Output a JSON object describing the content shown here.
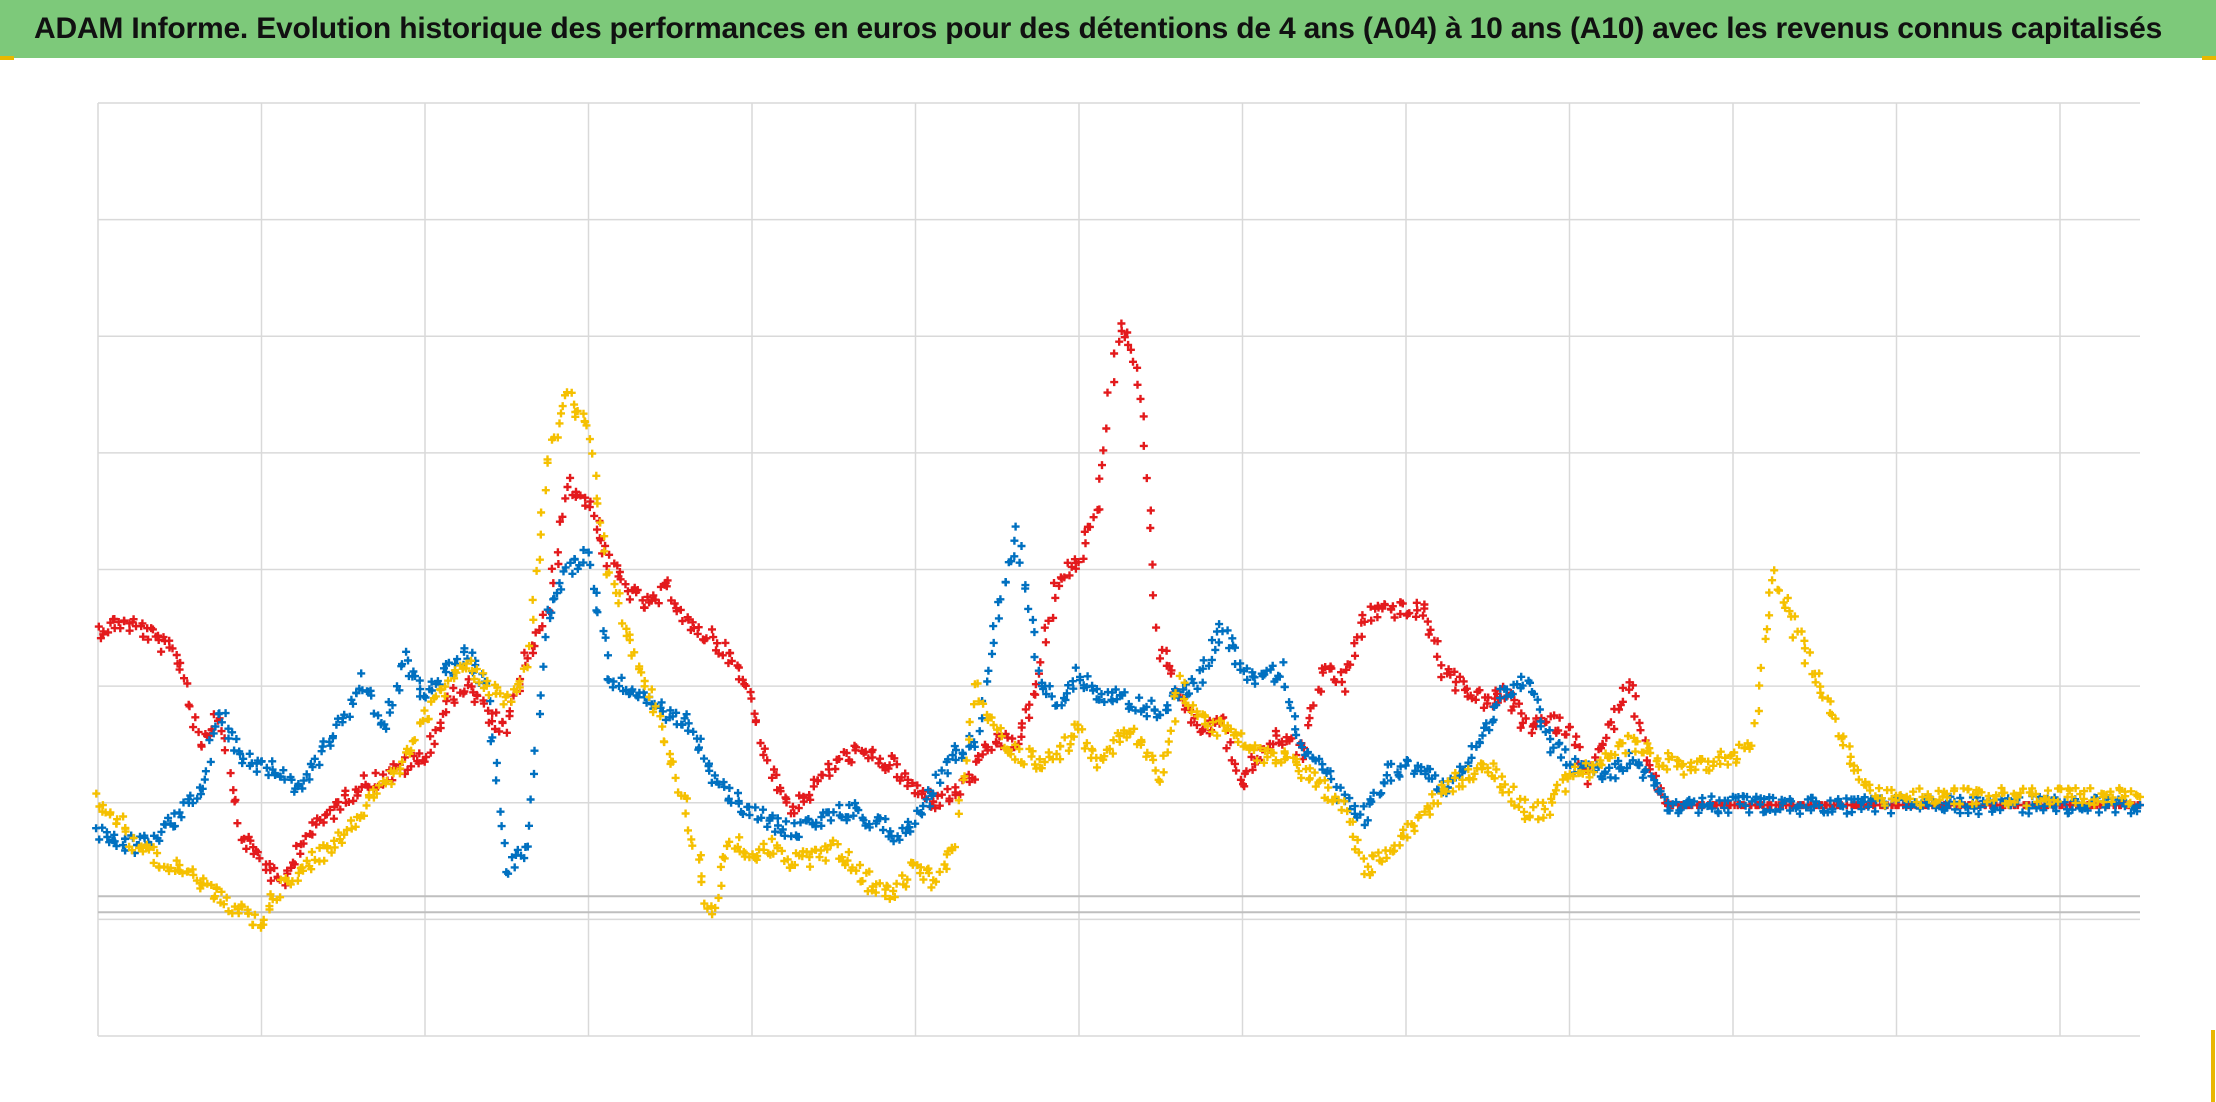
{
  "header": {
    "title": "ADAM Informe. Evolution historique des performances en euros pour des détentions de 4 ans (A04) à 10 ans (A10) avec les revenus connus capitalisés"
  },
  "colors": {
    "title_background": "#7dc97a",
    "grid": "#d9d9d9",
    "axis": "#bfbfbf",
    "frame_accent": "#e8b800"
  },
  "chart_data": {
    "type": "scatter",
    "marker": "plus",
    "title": "ADAM Informe. Evolution historique des performances en euros pour des détentions de 4 ans (A04) à 10 ans (A10) avec les revenus connus capitalisés",
    "xlabel": "",
    "ylabel": "",
    "axis_labels_visible": false,
    "grid": true,
    "legend": "none",
    "x_gridline_count": 13,
    "y_gridline_count": 8,
    "xlim": [
      0,
      1000
    ],
    "ylim": [
      -113,
      687
    ],
    "series": [
      {
        "color": "#e31a1c",
        "x": [
          0,
          10,
          20,
          30,
          40,
          50,
          60,
          70,
          80,
          90,
          100,
          110,
          120,
          130,
          140,
          150,
          160,
          170,
          180,
          190,
          200,
          210,
          220,
          230,
          240,
          250,
          260,
          270,
          280,
          290,
          300,
          310,
          320,
          330,
          340,
          350,
          360,
          370,
          380,
          390,
          400,
          410,
          420,
          430,
          440,
          450,
          460,
          470,
          480,
          490,
          500,
          510,
          520,
          530,
          540,
          550,
          560,
          570,
          580,
          590,
          600,
          610,
          620,
          630,
          640,
          650,
          660,
          670,
          680,
          690,
          700,
          710,
          720,
          730,
          740,
          750,
          760,
          770,
          780,
          790,
          800,
          810,
          820,
          830,
          840,
          850,
          860,
          870,
          880,
          890,
          900,
          910,
          920,
          930,
          940,
          950,
          960,
          970,
          980,
          990,
          1000
        ],
        "y": [
          235,
          242,
          238,
          225,
          210,
          138,
          165,
          58,
          40,
          15,
          55,
          72,
          90,
          104,
          108,
          118,
          125,
          168,
          190,
          165,
          148,
          210,
          245,
          360,
          345,
          295,
          268,
          255,
          272,
          235,
          230,
          210,
          176,
          108,
          82,
          100,
          120,
          130,
          125,
          118,
          98,
          88,
          95,
          115,
          142,
          136,
          190,
          280,
          292,
          340,
          505,
          440,
          220,
          180,
          148,
          160,
          102,
          132,
          145,
          130,
          206,
          188,
          247,
          254,
          252,
          250,
          195,
          185,
          172,
          180,
          152,
          156,
          151,
          110,
          148,
          190,
          108,
          85,
          85,
          85,
          85,
          85,
          85,
          85,
          85,
          85,
          85,
          85,
          85,
          85,
          85,
          85,
          85,
          85,
          85,
          85,
          85,
          85,
          85,
          85,
          85
        ]
      },
      {
        "color": "#0070c0",
        "x": [
          0,
          10,
          20,
          30,
          40,
          50,
          60,
          70,
          80,
          90,
          100,
          110,
          120,
          130,
          140,
          150,
          160,
          170,
          180,
          190,
          200,
          210,
          220,
          230,
          240,
          250,
          260,
          270,
          280,
          290,
          300,
          310,
          320,
          330,
          340,
          350,
          360,
          370,
          380,
          390,
          400,
          410,
          420,
          430,
          440,
          450,
          460,
          470,
          480,
          490,
          500,
          510,
          520,
          530,
          540,
          550,
          560,
          570,
          580,
          590,
          600,
          610,
          620,
          630,
          640,
          650,
          660,
          670,
          680,
          690,
          700,
          710,
          720,
          730,
          740,
          750,
          760,
          770,
          780,
          790,
          800,
          810,
          820,
          830,
          840,
          850,
          860,
          870,
          880,
          890,
          900,
          910,
          920,
          930,
          940,
          950,
          960,
          970,
          980,
          990,
          1000
        ],
        "y": [
          62,
          55,
          50,
          60,
          75,
          98,
          168,
          125,
          120,
          110,
          95,
          135,
          160,
          192,
          150,
          210,
          178,
          198,
          215,
          185,
          30,
          50,
          245,
          285,
          300,
          200,
          180,
          172,
          160,
          155,
          110,
          92,
          78,
          70,
          62,
          70,
          78,
          80,
          72,
          60,
          70,
          102,
          130,
          140,
          245,
          320,
          200,
          175,
          198,
          182,
          178,
          170,
          165,
          182,
          195,
          240,
          200,
          195,
          200,
          135,
          115,
          90,
          75,
          110,
          120,
          112,
          100,
          120,
          150,
          185,
          190,
          142,
          122,
          115,
          110,
          125,
          110,
          85,
          85,
          85,
          85,
          85,
          85,
          85,
          85,
          85,
          85,
          85,
          85,
          85,
          85,
          85,
          85,
          85,
          85,
          85,
          85,
          85,
          85,
          85,
          85
        ]
      },
      {
        "color": "#f5c000",
        "x": [
          0,
          10,
          20,
          30,
          40,
          50,
          60,
          70,
          80,
          90,
          100,
          110,
          120,
          130,
          140,
          150,
          160,
          170,
          180,
          190,
          200,
          210,
          220,
          230,
          240,
          250,
          260,
          270,
          280,
          290,
          300,
          310,
          320,
          330,
          340,
          350,
          360,
          370,
          380,
          390,
          400,
          410,
          420,
          430,
          440,
          450,
          460,
          470,
          480,
          490,
          500,
          510,
          520,
          530,
          540,
          550,
          560,
          570,
          580,
          590,
          600,
          610,
          620,
          630,
          640,
          650,
          660,
          670,
          680,
          690,
          700,
          710,
          720,
          730,
          740,
          750,
          760,
          770,
          780,
          790,
          800,
          810,
          820,
          830,
          840,
          850,
          860,
          870,
          880,
          890,
          900,
          910,
          920,
          930,
          940,
          950,
          960,
          970,
          980,
          990,
          1000
        ],
        "y": [
          90,
          72,
          45,
          40,
          30,
          18,
          5,
          -5,
          -15,
          15,
          30,
          45,
          60,
          82,
          102,
          125,
          160,
          185,
          205,
          190,
          175,
          198,
          380,
          435,
          405,
          290,
          225,
          178,
          130,
          70,
          -10,
          55,
          40,
          50,
          35,
          40,
          48,
          32,
          15,
          10,
          32,
          20,
          55,
          190,
          145,
          130,
          122,
          128,
          152,
          118,
          145,
          142,
          105,
          190,
          158,
          150,
          140,
          125,
          128,
          115,
          100,
          85,
          30,
          40,
          60,
          82,
          100,
          110,
          120,
          100,
          80,
          80,
          110,
          115,
          126,
          138,
          130,
          120,
          118,
          122,
          125,
          140,
          285,
          240,
          200,
          160,
          120,
          92,
          92,
          92,
          92,
          92,
          92,
          92,
          92,
          92,
          92,
          92,
          92,
          92,
          92
        ]
      }
    ]
  }
}
